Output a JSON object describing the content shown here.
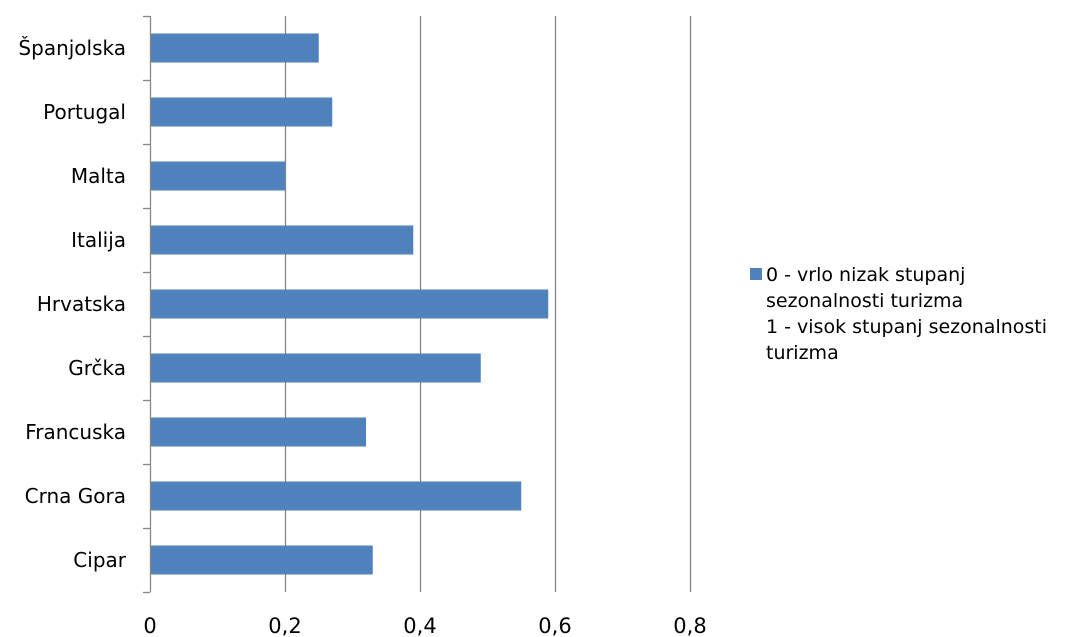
{
  "chart_data": {
    "type": "bar",
    "orientation": "horizontal",
    "categories": [
      "Španjolska",
      "Portugal",
      "Malta",
      "Italija",
      "Hrvatska",
      "Grčka",
      "Francuska",
      "Crna Gora",
      "Cipar"
    ],
    "series": [
      {
        "name": "0 - vrlo nizak stupanj sezonalnosti turizma\n1 - visok stupanj sezonalnosti turizma",
        "values": [
          0.25,
          0.27,
          0.2,
          0.39,
          0.59,
          0.49,
          0.32,
          0.55,
          0.33
        ],
        "color": "#4f81bd"
      }
    ],
    "xlim": [
      0,
      0.8
    ],
    "x_ticks": [
      0,
      0.2,
      0.4,
      0.6,
      0.8
    ],
    "x_tick_labels": [
      "0",
      "0,2",
      "0,4",
      "0,6",
      "0,8"
    ],
    "grid": "vertical major gridlines",
    "legend_position": "right"
  }
}
